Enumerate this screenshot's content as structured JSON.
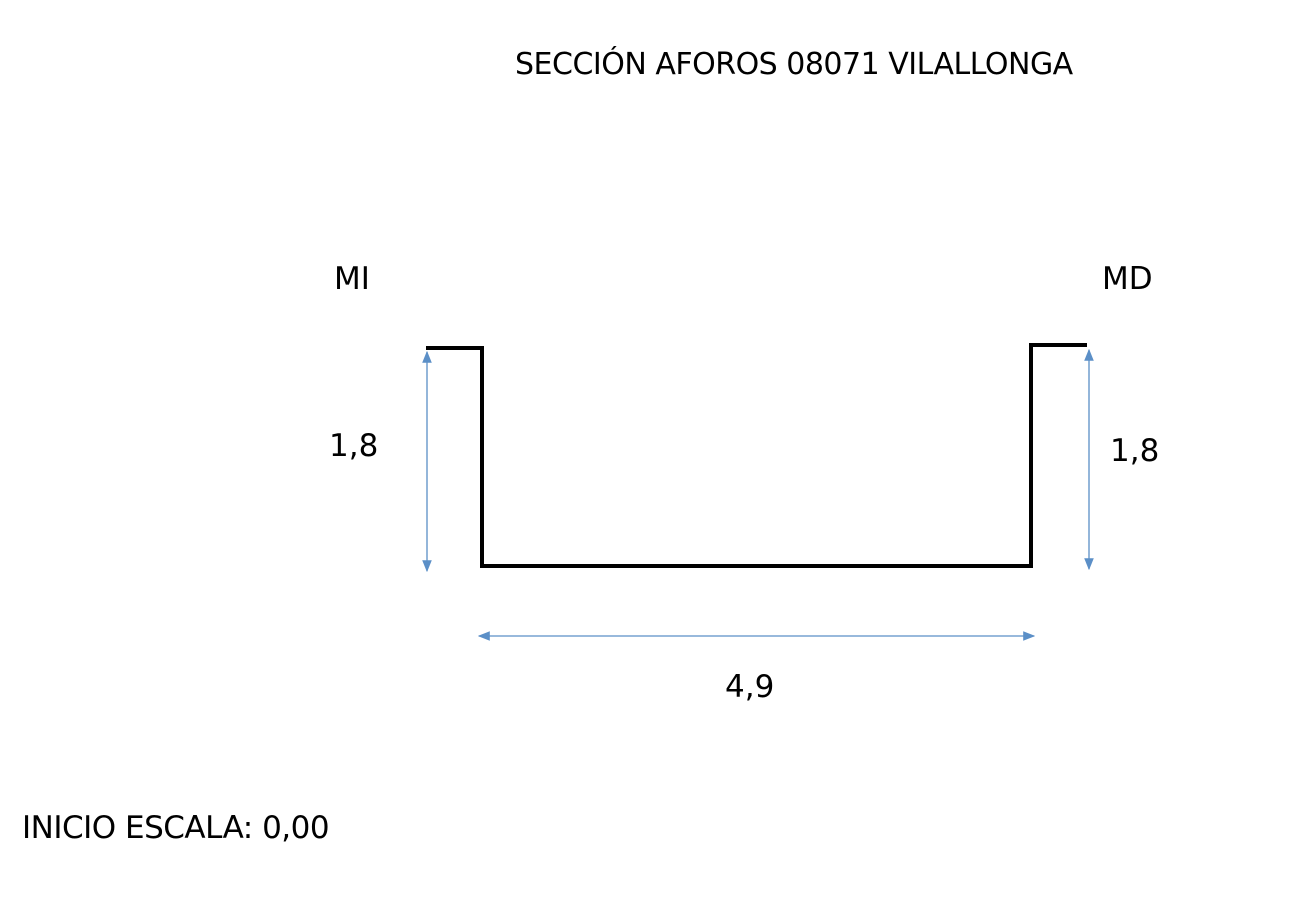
{
  "title": "SECCIÓN AFOROS 08071 VILALLONGA",
  "labels": {
    "left_bank": "MI",
    "right_bank": "MD",
    "left_depth": "1,8",
    "right_depth": "1,8",
    "channel_width": "4,9",
    "scale_start": "INICIO ESCALA: 0,00"
  },
  "colors": {
    "section_line": "#000000",
    "dimension_line": "#5b8fc7",
    "background": "#ffffff"
  }
}
